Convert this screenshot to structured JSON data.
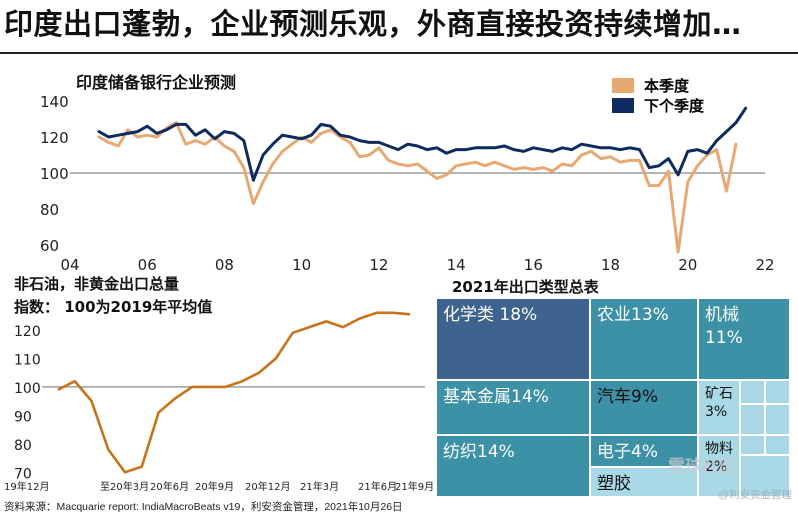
{
  "headline": "印度出口蓬勃，企业预测乐观，外商直接投资持续增加…",
  "footer": "资料来源：Macquarie report: IndiaMacroBeats v19，利安资金管理，2021年10月26日",
  "watermark": {
    "top": "雪球社区",
    "bottom": "@利安资金管理"
  },
  "colors": {
    "current_quarter": "#e8a873",
    "next_quarter": "#0d2b5e",
    "export_index": "#c8731a",
    "reference_line": "#8a8a8a",
    "tile_dark": "#3e638e",
    "tile_teal": "#3c91a6",
    "tile_light": "#a9d9e6"
  },
  "chart_data": [
    {
      "type": "line",
      "title": "印度储备银行企业预测",
      "xlabel": "",
      "ylabel": "",
      "x_range": [
        2004,
        2022
      ],
      "ylim": [
        60,
        145
      ],
      "y_ticks": [
        60,
        80,
        100,
        120,
        140
      ],
      "x_tick_labels": [
        "04",
        "06",
        "08",
        "10",
        "12",
        "14",
        "16",
        "18",
        "20",
        "22"
      ],
      "reference_line": 100,
      "legend": [
        "本季度",
        "下个季度"
      ],
      "legend_position": "top-right",
      "series": [
        {
          "name": "本季度",
          "x": [
            2004.75,
            2005,
            2005.25,
            2005.5,
            2005.75,
            2006,
            2006.25,
            2006.5,
            2006.75,
            2007,
            2007.25,
            2007.5,
            2007.75,
            2008,
            2008.25,
            2008.5,
            2008.75,
            2009,
            2009.25,
            2009.5,
            2009.75,
            2010,
            2010.25,
            2010.5,
            2010.75,
            2011,
            2011.25,
            2011.5,
            2011.75,
            2012,
            2012.25,
            2012.5,
            2012.75,
            2013,
            2013.25,
            2013.5,
            2013.75,
            2014,
            2014.25,
            2014.5,
            2014.75,
            2015,
            2015.25,
            2015.5,
            2015.75,
            2016,
            2016.25,
            2016.5,
            2016.75,
            2017,
            2017.25,
            2017.5,
            2017.75,
            2018,
            2018.25,
            2018.5,
            2018.75,
            2019,
            2019.25,
            2019.5,
            2019.75,
            2020,
            2020.25,
            2020.5,
            2020.75,
            2021,
            2021.25
          ],
          "values": [
            120,
            117,
            115,
            124,
            120,
            121,
            120,
            125,
            128,
            116,
            118,
            116,
            120,
            115,
            112,
            103,
            83,
            95,
            105,
            112,
            116,
            120,
            117,
            122,
            124,
            120,
            117,
            109,
            110,
            114,
            107,
            105,
            104,
            105,
            101,
            97,
            99,
            104,
            105,
            106,
            104,
            106,
            104,
            102,
            103,
            102,
            103,
            101,
            105,
            104,
            110,
            112,
            108,
            109,
            106,
            107,
            107,
            93,
            93,
            101,
            56,
            95,
            104,
            110,
            113,
            90,
            116
          ]
        },
        {
          "name": "下个季度",
          "x": [
            2004.75,
            2005,
            2005.25,
            2005.5,
            2005.75,
            2006,
            2006.25,
            2006.5,
            2006.75,
            2007,
            2007.25,
            2007.5,
            2007.75,
            2008,
            2008.25,
            2008.5,
            2008.75,
            2009,
            2009.25,
            2009.5,
            2009.75,
            2010,
            2010.25,
            2010.5,
            2010.75,
            2011,
            2011.25,
            2011.5,
            2011.75,
            2012,
            2012.25,
            2012.5,
            2012.75,
            2013,
            2013.25,
            2013.5,
            2013.75,
            2014,
            2014.25,
            2014.5,
            2014.75,
            2015,
            2015.25,
            2015.5,
            2015.75,
            2016,
            2016.25,
            2016.5,
            2016.75,
            2017,
            2017.25,
            2017.5,
            2017.75,
            2018,
            2018.25,
            2018.5,
            2018.75,
            2019,
            2019.25,
            2019.5,
            2019.75,
            2020,
            2020.25,
            2020.5,
            2020.75,
            2021,
            2021.25,
            2021.5
          ],
          "values": [
            123,
            120,
            121,
            122,
            123,
            126,
            122,
            124,
            127,
            127,
            121,
            124,
            119,
            123,
            122,
            118,
            96,
            110,
            116,
            121,
            120,
            119,
            121,
            127,
            126,
            121,
            120,
            118,
            117,
            117,
            115,
            113,
            116,
            115,
            113,
            114,
            111,
            113,
            113,
            114,
            114,
            114,
            115,
            113,
            112,
            114,
            113,
            112,
            114,
            113,
            116,
            115,
            114,
            114,
            113,
            114,
            113,
            103,
            104,
            108,
            99,
            112,
            113,
            111,
            118,
            123,
            128,
            136
          ]
        }
      ]
    },
    {
      "type": "line",
      "title": "非石油，非黄金出口总量",
      "subtitle": "指数： 100为2019年平均值",
      "xlabel": "",
      "ylabel": "",
      "ylim": [
        68,
        127
      ],
      "y_ticks": [
        70,
        80,
        90,
        100,
        110,
        120
      ],
      "reference_line": 100,
      "categories": [
        "19年12月",
        "20年1月",
        "20年2月",
        "20年3月",
        "20年4月",
        "20年5月",
        "20年6月",
        "20年7月",
        "20年8月",
        "20年9月",
        "20年10月",
        "20年11月",
        "20年12月",
        "21年1月",
        "21年2月",
        "21年3月",
        "21年4月",
        "21年5月",
        "21年6月",
        "21年7月",
        "21年8月",
        "21年9月"
      ],
      "x_tick_labels": [
        "19年12月",
        "至20年3月",
        "20年6月",
        "20年9月",
        "20年12月",
        "21年3月",
        "21年6月",
        "21年9月"
      ],
      "series": [
        {
          "name": "非石油，非黄金出口总量",
          "values": [
            99,
            102,
            95,
            78,
            70,
            72,
            91,
            96,
            100,
            100,
            100,
            102,
            105,
            110,
            119,
            121,
            123,
            121,
            124,
            126,
            126,
            125.5
          ]
        }
      ]
    },
    {
      "type": "treemap",
      "title": "2021年出口类型总表",
      "items": [
        {
          "label": "化学类",
          "value": 18,
          "display": "化学类 18%"
        },
        {
          "label": "农业",
          "value": 13,
          "display": "农业13%"
        },
        {
          "label": "机械",
          "value": 11,
          "display": "机械",
          "display2": "11%"
        },
        {
          "label": "基本金属",
          "value": 14,
          "display": "基本金属14%"
        },
        {
          "label": "汽车",
          "value": 9,
          "display": "汽车9%"
        },
        {
          "label": "矿石",
          "value": 3,
          "display": "矿石",
          "display2": "3%"
        },
        {
          "label": "纺织",
          "value": 14,
          "display": "纺织14%"
        },
        {
          "label": "电子",
          "value": 4,
          "display": "电子4%"
        },
        {
          "label": "塑胶",
          "value": null,
          "display": "塑胶"
        },
        {
          "label": "物料",
          "value": 2,
          "display": "物料",
          "display2": "2%"
        }
      ]
    }
  ]
}
